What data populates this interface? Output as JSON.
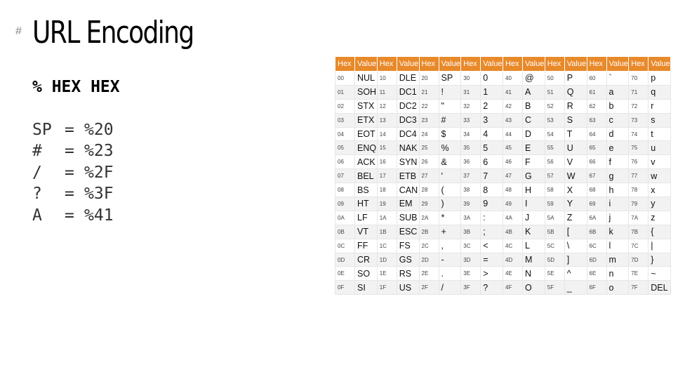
{
  "heading": {
    "hash": "#",
    "title": "URL Encoding"
  },
  "subtitle": "% HEX HEX",
  "examples": [
    {
      "char": "SP",
      "eq": "=",
      "code": "%20"
    },
    {
      "char": "#",
      "eq": "=",
      "code": "%23"
    },
    {
      "char": "/",
      "eq": "=",
      "code": "%2F"
    },
    {
      "char": "?",
      "eq": "=",
      "code": "%3F"
    },
    {
      "char": "A",
      "eq": "=",
      "code": "%41"
    }
  ],
  "ascii_table": {
    "header_color": "#e8892a",
    "headers": [
      "Hex",
      "Value",
      "Hex",
      "Value",
      "Hex",
      "Value",
      "Hex",
      "Value",
      "Hex",
      "Value",
      "Hex",
      "Value",
      "Hex",
      "Value",
      "Hex",
      "Value"
    ],
    "rows": [
      [
        "00",
        "NUL",
        "10",
        "DLE",
        "20",
        "SP",
        "30",
        "0",
        "40",
        "@",
        "50",
        "P",
        "60",
        "`",
        "70",
        "p"
      ],
      [
        "01",
        "SOH",
        "11",
        "DC1",
        "21",
        "!",
        "31",
        "1",
        "41",
        "A",
        "51",
        "Q",
        "61",
        "a",
        "71",
        "q"
      ],
      [
        "02",
        "STX",
        "12",
        "DC2",
        "22",
        "\"",
        "32",
        "2",
        "42",
        "B",
        "52",
        "R",
        "62",
        "b",
        "72",
        "r"
      ],
      [
        "03",
        "ETX",
        "13",
        "DC3",
        "23",
        "#",
        "33",
        "3",
        "43",
        "C",
        "53",
        "S",
        "63",
        "c",
        "73",
        "s"
      ],
      [
        "04",
        "EOT",
        "14",
        "DC4",
        "24",
        "$",
        "34",
        "4",
        "44",
        "D",
        "54",
        "T",
        "64",
        "d",
        "74",
        "t"
      ],
      [
        "05",
        "ENQ",
        "15",
        "NAK",
        "25",
        "%",
        "35",
        "5",
        "45",
        "E",
        "55",
        "U",
        "65",
        "e",
        "75",
        "u"
      ],
      [
        "06",
        "ACK",
        "16",
        "SYN",
        "26",
        "&",
        "36",
        "6",
        "46",
        "F",
        "56",
        "V",
        "66",
        "f",
        "76",
        "v"
      ],
      [
        "07",
        "BEL",
        "17",
        "ETB",
        "27",
        "'",
        "37",
        "7",
        "47",
        "G",
        "57",
        "W",
        "67",
        "g",
        "77",
        "w"
      ],
      [
        "08",
        "BS",
        "18",
        "CAN",
        "28",
        "(",
        "38",
        "8",
        "48",
        "H",
        "58",
        "X",
        "68",
        "h",
        "78",
        "x"
      ],
      [
        "09",
        "HT",
        "19",
        "EM",
        "29",
        ")",
        "39",
        "9",
        "49",
        "I",
        "59",
        "Y",
        "69",
        "i",
        "79",
        "y"
      ],
      [
        "0A",
        "LF",
        "1A",
        "SUB",
        "2A",
        "*",
        "3A",
        ":",
        "4A",
        "J",
        "5A",
        "Z",
        "6A",
        "j",
        "7A",
        "z"
      ],
      [
        "0B",
        "VT",
        "1B",
        "ESC",
        "2B",
        "+",
        "3B",
        ";",
        "4B",
        "K",
        "5B",
        "[",
        "6B",
        "k",
        "7B",
        "{"
      ],
      [
        "0C",
        "FF",
        "1C",
        "FS",
        "2C",
        ",",
        "3C",
        "<",
        "4C",
        "L",
        "5C",
        "\\",
        "6C",
        "l",
        "7C",
        "|"
      ],
      [
        "0D",
        "CR",
        "1D",
        "GS",
        "2D",
        "-",
        "3D",
        "=",
        "4D",
        "M",
        "5D",
        "]",
        "6D",
        "m",
        "7D",
        "}"
      ],
      [
        "0E",
        "SO",
        "1E",
        "RS",
        "2E",
        ".",
        "3E",
        ">",
        "4E",
        "N",
        "5E",
        "^",
        "6E",
        "n",
        "7E",
        "~"
      ],
      [
        "0F",
        "SI",
        "1F",
        "US",
        "2F",
        "/",
        "3F",
        "?",
        "4F",
        "O",
        "5F",
        "_",
        "6F",
        "o",
        "7F",
        "DEL"
      ]
    ]
  }
}
